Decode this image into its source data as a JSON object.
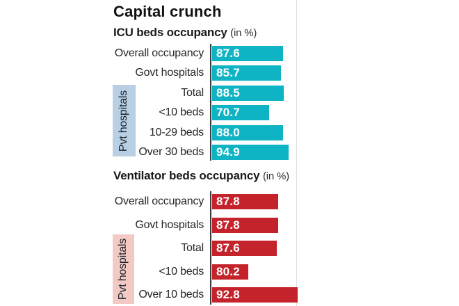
{
  "page": {
    "title": "Capital crunch"
  },
  "divider_color": "#dcdcdc",
  "chart_data": [
    {
      "type": "bar",
      "orientation": "horizontal",
      "title": "ICU beds occupancy",
      "unit_note": "(in %)",
      "categories": [
        "Overall occupancy",
        "Govt hospitals",
        "Total",
        "<10 beds",
        "10-29 beds",
        "Over 30 beds"
      ],
      "values": [
        87.6,
        85.7,
        88.5,
        70.7,
        88.0,
        94.9
      ],
      "value_labels": [
        "87.6",
        "85.7",
        "88.5",
        "70.7",
        "88.0",
        "94.9"
      ],
      "xlim": [
        0,
        110
      ],
      "grid": false,
      "data_label_position": "inside-left-white",
      "bar_color": "#0fb4c4",
      "group_annotation": {
        "label": "Pvt hospitals",
        "covers": [
          "Total",
          "<10 beds",
          "10-29 beds",
          "Over 30 beds"
        ],
        "box_color": "#b9cfe3"
      }
    },
    {
      "type": "bar",
      "orientation": "horizontal",
      "title": "Ventilator beds occupancy",
      "unit_note": "(in %)",
      "categories": [
        "Overall occupancy",
        "Govt hospitals",
        "Total",
        "<10 beds",
        "Over 10 beds"
      ],
      "values": [
        87.8,
        87.8,
        87.6,
        80.2,
        92.8
      ],
      "value_labels": [
        "87.8",
        "87.8",
        "87.6",
        "80.2",
        "92.8"
      ],
      "xlim": [
        71,
        95
      ],
      "grid": false,
      "data_label_position": "inside-left-white",
      "bar_color": "#c5232b",
      "group_annotation": {
        "label": "Pvt hospitals",
        "covers": [
          "Total",
          "<10 beds",
          "Over 10 beds"
        ],
        "box_color": "#f3c9c4"
      }
    }
  ]
}
